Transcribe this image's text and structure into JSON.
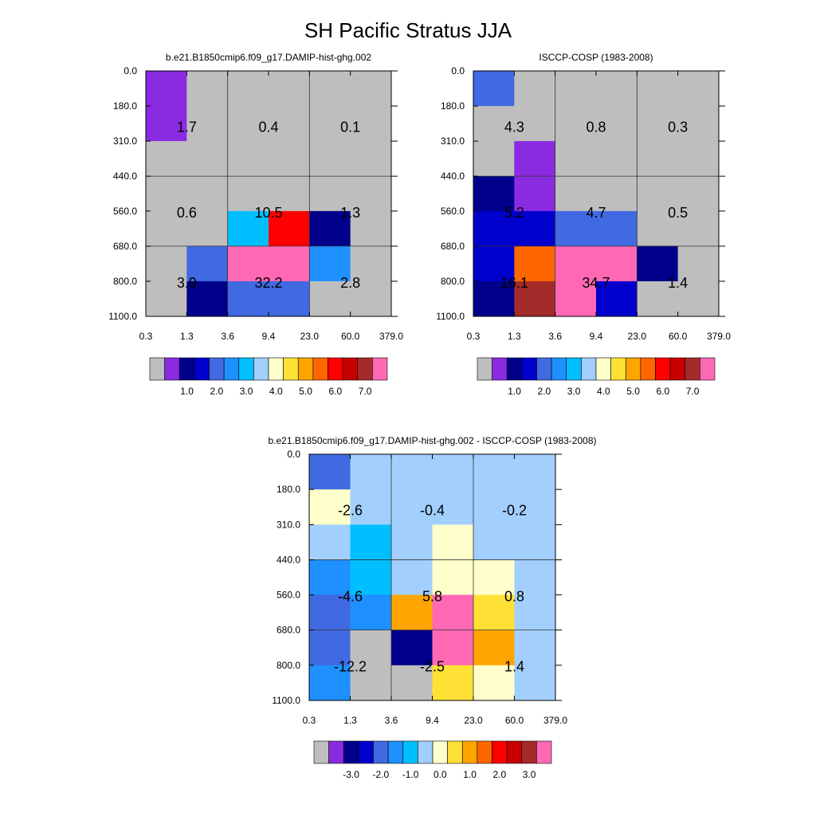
{
  "title": "SH Pacific Stratus JJA",
  "panels": [
    {
      "subtitle": "b.e21.B1850cmip6.f09_g17.DAMIP-hist-ghg.002",
      "chart_data": {
        "type": "heatmap",
        "x_ticks": [
          "0.3",
          "1.3",
          "3.6",
          "9.4",
          "23.0",
          "60.0",
          "379.0"
        ],
        "y_ticks": [
          "0.0",
          "180.0",
          "310.0",
          "440.0",
          "560.0",
          "680.0",
          "800.0",
          "1100.0"
        ],
        "cells": [
          [
            "#8a2be2",
            "#bebebe",
            "#bebebe",
            "#bebebe",
            "#bebebe",
            "#bebebe"
          ],
          [
            "#8a2be2",
            "#bebebe",
            "#bebebe",
            "#bebebe",
            "#bebebe",
            "#bebebe"
          ],
          [
            "#bebebe",
            "#bebebe",
            "#bebebe",
            "#bebebe",
            "#bebebe",
            "#bebebe"
          ],
          [
            "#bebebe",
            "#bebebe",
            "#bebebe",
            "#bebebe",
            "#bebebe",
            "#bebebe"
          ],
          [
            "#bebebe",
            "#bebebe",
            "#00bfff",
            "#ff0000",
            "#00008b",
            "#bebebe"
          ],
          [
            "#bebebe",
            "#4169e1",
            "#ff69b4",
            "#ff69b4",
            "#1e90ff",
            "#bebebe"
          ],
          [
            "#bebebe",
            "#00008b",
            "#4169e1",
            "#4169e1",
            "#bebebe",
            "#bebebe"
          ]
        ],
        "block_values": [
          [
            "1.7",
            "0.4",
            "0.1"
          ],
          [
            "0.6",
            "10.5",
            "1.3"
          ],
          [
            "3.9",
            "32.2",
            "2.8"
          ]
        ],
        "colorbar": {
          "colors": [
            "#bebebe",
            "#8a2be2",
            "#00008b",
            "#0000cd",
            "#4169e1",
            "#1e90ff",
            "#00bfff",
            "#a2cffe",
            "#ffffcc",
            "#ffe135",
            "#ffa500",
            "#ff6600",
            "#ff0000",
            "#c80000",
            "#a52a2a",
            "#ff69b4"
          ],
          "labels": [
            "1.0",
            "2.0",
            "3.0",
            "4.0",
            "5.0",
            "6.0",
            "7.0"
          ]
        }
      }
    },
    {
      "subtitle": "ISCCP-COSP (1983-2008)",
      "chart_data": {
        "type": "heatmap",
        "x_ticks": [
          "0.3",
          "1.3",
          "3.6",
          "9.4",
          "23.0",
          "60.0",
          "379.0"
        ],
        "y_ticks": [
          "0.0",
          "180.0",
          "310.0",
          "440.0",
          "560.0",
          "680.0",
          "800.0",
          "1100.0"
        ],
        "cells": [
          [
            "#4169e1",
            "#bebebe",
            "#bebebe",
            "#bebebe",
            "#bebebe",
            "#bebebe"
          ],
          [
            "#bebebe",
            "#bebebe",
            "#bebebe",
            "#bebebe",
            "#bebebe",
            "#bebebe"
          ],
          [
            "#bebebe",
            "#8a2be2",
            "#bebebe",
            "#bebebe",
            "#bebebe",
            "#bebebe"
          ],
          [
            "#00008b",
            "#8a2be2",
            "#bebebe",
            "#bebebe",
            "#bebebe",
            "#bebebe"
          ],
          [
            "#0000cd",
            "#0000cd",
            "#4169e1",
            "#4169e1",
            "#bebebe",
            "#bebebe"
          ],
          [
            "#0000cd",
            "#ff6600",
            "#ff69b4",
            "#ff69b4",
            "#00008b",
            "#bebebe"
          ],
          [
            "#00008b",
            "#a52a2a",
            "#ff69b4",
            "#0000cd",
            "#bebebe",
            "#bebebe"
          ]
        ],
        "block_values": [
          [
            "4.3",
            "0.8",
            "0.3"
          ],
          [
            "5.2",
            "4.7",
            "0.5"
          ],
          [
            "16.1",
            "34.7",
            "1.4"
          ]
        ],
        "colorbar": {
          "colors": [
            "#bebebe",
            "#8a2be2",
            "#00008b",
            "#0000cd",
            "#4169e1",
            "#1e90ff",
            "#00bfff",
            "#a2cffe",
            "#ffffcc",
            "#ffe135",
            "#ffa500",
            "#ff6600",
            "#ff0000",
            "#c80000",
            "#a52a2a",
            "#ff69b4"
          ],
          "labels": [
            "1.0",
            "2.0",
            "3.0",
            "4.0",
            "5.0",
            "6.0",
            "7.0"
          ]
        }
      }
    },
    {
      "subtitle": "b.e21.B1850cmip6.f09_g17.DAMIP-hist-ghg.002 - ISCCP-COSP (1983-2008)",
      "chart_data": {
        "type": "heatmap",
        "x_ticks": [
          "0.3",
          "1.3",
          "3.6",
          "9.4",
          "23.0",
          "60.0",
          "379.0"
        ],
        "y_ticks": [
          "0.0",
          "180.0",
          "310.0",
          "440.0",
          "560.0",
          "680.0",
          "800.0",
          "1100.0"
        ],
        "cells": [
          [
            "#4169e1",
            "#a2cffe",
            "#a2cffe",
            "#a2cffe",
            "#a2cffe",
            "#a2cffe"
          ],
          [
            "#ffffcc",
            "#a2cffe",
            "#a2cffe",
            "#a2cffe",
            "#a2cffe",
            "#a2cffe"
          ],
          [
            "#a2cffe",
            "#00bfff",
            "#a2cffe",
            "#ffffcc",
            "#a2cffe",
            "#a2cffe"
          ],
          [
            "#1e90ff",
            "#00bfff",
            "#a2cffe",
            "#ffffcc",
            "#ffffcc",
            "#a2cffe"
          ],
          [
            "#4169e1",
            "#1e90ff",
            "#ffa500",
            "#ff69b4",
            "#ffe135",
            "#a2cffe"
          ],
          [
            "#4169e1",
            "#bebebe",
            "#00008b",
            "#ff69b4",
            "#ffa500",
            "#a2cffe"
          ],
          [
            "#1e90ff",
            "#bebebe",
            "#bebebe",
            "#ffe135",
            "#ffffcc",
            "#a2cffe"
          ]
        ],
        "block_values": [
          [
            "-2.6",
            "-0.4",
            "-0.2"
          ],
          [
            "-4.6",
            "5.8",
            "0.8"
          ],
          [
            "-12.2",
            "-2.5",
            "1.4"
          ]
        ],
        "colorbar": {
          "colors": [
            "#bebebe",
            "#8a2be2",
            "#00008b",
            "#0000cd",
            "#4169e1",
            "#1e90ff",
            "#00bfff",
            "#a2cffe",
            "#ffffcc",
            "#ffe135",
            "#ffa500",
            "#ff6600",
            "#ff0000",
            "#c80000",
            "#a52a2a",
            "#ff69b4"
          ],
          "labels": [
            "-3.0",
            "-2.0",
            "-1.0",
            "0.0",
            "1.0",
            "2.0",
            "3.0"
          ]
        }
      }
    }
  ]
}
